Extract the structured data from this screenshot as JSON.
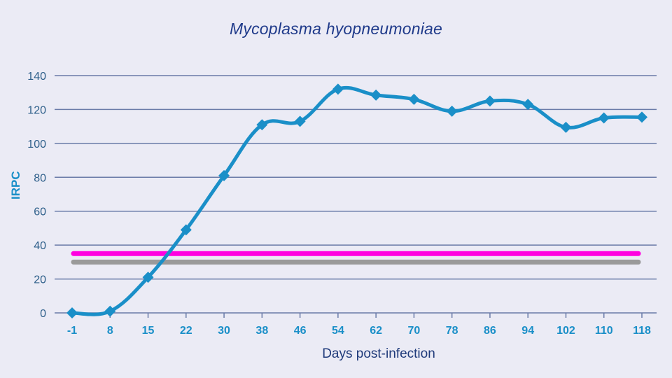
{
  "chart_data": {
    "type": "line",
    "title": "Mycoplasma hyopneumoniae",
    "xlabel": "Days post-infection",
    "ylabel": "IRPC",
    "ylim": [
      0,
      140
    ],
    "yticks": [
      0,
      20,
      40,
      60,
      80,
      100,
      120,
      140
    ],
    "grid": true,
    "categories": [
      "-1",
      "8",
      "15",
      "22",
      "30",
      "38",
      "46",
      "54",
      "62",
      "70",
      "78",
      "86",
      "94",
      "102",
      "110",
      "118"
    ],
    "series": [
      {
        "name": "Mycoplasma hyopneumoniae IRPC",
        "color": "#1a8fc8",
        "marker": "diamond",
        "values": [
          0,
          1,
          21,
          49,
          81,
          111,
          113,
          132,
          128.5,
          126,
          119,
          125,
          123,
          109.5,
          115,
          115.5
        ]
      }
    ],
    "reference_lines": [
      {
        "name": "cutoff-magenta",
        "value": 35,
        "color": "#ff00e0"
      },
      {
        "name": "cutoff-gray",
        "value": 30,
        "color": "#9a9a9a"
      }
    ],
    "legend": null
  },
  "labels": {
    "title": "Mycoplasma hyopneumoniae",
    "xlabel": "Days post-infection",
    "ylabel": "IRPC"
  },
  "colors": {
    "background": "#ebebf5",
    "grid": "#6a7ba8",
    "series": "#1a8fc8",
    "magenta_line": "#ff00e0",
    "gray_line": "#9a9a9a",
    "title": "#1f3a8a"
  }
}
